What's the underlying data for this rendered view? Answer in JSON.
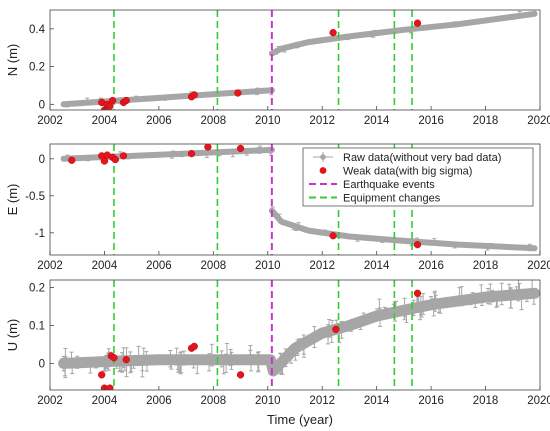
{
  "chart_data": [
    {
      "type": "scatter",
      "ylabel": "N (m)",
      "xlim": [
        2002,
        2020
      ],
      "ylim": [
        -0.03,
        0.5
      ],
      "xticks": [
        2002,
        2004,
        2006,
        2008,
        2010,
        2012,
        2014,
        2016,
        2018,
        2020
      ],
      "yticks": [
        0,
        0.2,
        0.4
      ],
      "raw_trend": [
        [
          2002.5,
          0.0
        ],
        [
          2010.15,
          0.075
        ],
        [
          2010.15,
          0.27
        ],
        [
          2010.5,
          0.295
        ],
        [
          2011.5,
          0.33
        ],
        [
          2013,
          0.36
        ],
        [
          2015,
          0.395
        ],
        [
          2017,
          0.425
        ],
        [
          2019.8,
          0.48
        ]
      ],
      "weak_points": [
        [
          2003.9,
          0.01
        ],
        [
          2004.0,
          -0.03
        ],
        [
          2004.1,
          0.0
        ],
        [
          2004.2,
          -0.01
        ],
        [
          2004.3,
          0.02
        ],
        [
          2004.7,
          0.01
        ],
        [
          2004.8,
          0.02
        ],
        [
          2007.2,
          0.04
        ],
        [
          2007.3,
          0.05
        ],
        [
          2008.9,
          0.06
        ],
        [
          2012.4,
          0.38
        ],
        [
          2015.5,
          0.43
        ]
      ]
    },
    {
      "type": "scatter",
      "ylabel": "E (m)",
      "xlim": [
        2002,
        2020
      ],
      "ylim": [
        -1.3,
        0.2
      ],
      "xticks": [
        2002,
        2004,
        2006,
        2008,
        2010,
        2012,
        2014,
        2016,
        2018,
        2020
      ],
      "yticks": [
        0,
        -0.5,
        -1
      ],
      "raw_trend": [
        [
          2002.5,
          0.0
        ],
        [
          2010.15,
          0.12
        ],
        [
          2010.15,
          -0.7
        ],
        [
          2010.5,
          -0.85
        ],
        [
          2011.5,
          -0.97
        ],
        [
          2013,
          -1.05
        ],
        [
          2015,
          -1.11
        ],
        [
          2017,
          -1.16
        ],
        [
          2019.8,
          -1.21
        ]
      ],
      "weak_points": [
        [
          2002.8,
          -0.02
        ],
        [
          2003.9,
          0.04
        ],
        [
          2004.0,
          -0.03
        ],
        [
          2004.1,
          0.05
        ],
        [
          2004.3,
          0.02
        ],
        [
          2004.4,
          -0.01
        ],
        [
          2004.7,
          0.04
        ],
        [
          2007.2,
          0.07
        ],
        [
          2007.8,
          0.16
        ],
        [
          2009.0,
          0.14
        ],
        [
          2012.4,
          -1.04
        ],
        [
          2015.5,
          -1.16
        ]
      ]
    },
    {
      "type": "scatter",
      "ylabel": "U (m)",
      "xlabel": "Time (year)",
      "xlim": [
        2002,
        2020
      ],
      "ylim": [
        -0.07,
        0.22
      ],
      "xticks": [
        2002,
        2004,
        2006,
        2008,
        2010,
        2012,
        2014,
        2016,
        2018,
        2020
      ],
      "yticks": [
        0,
        0.1,
        0.2
      ],
      "raw_trend": [
        [
          2002.5,
          0.0
        ],
        [
          2004,
          0.005
        ],
        [
          2006,
          0.01
        ],
        [
          2008,
          0.01
        ],
        [
          2010.1,
          0.01
        ],
        [
          2010.2,
          -0.02
        ],
        [
          2011,
          0.04
        ],
        [
          2012,
          0.08
        ],
        [
          2013,
          0.1
        ],
        [
          2014,
          0.125
        ],
        [
          2015,
          0.14
        ],
        [
          2016,
          0.155
        ],
        [
          2017,
          0.165
        ],
        [
          2018,
          0.175
        ],
        [
          2019.8,
          0.185
        ]
      ],
      "weak_points": [
        [
          2003.9,
          -0.03
        ],
        [
          2004.0,
          -0.065
        ],
        [
          2004.2,
          -0.065
        ],
        [
          2004.25,
          0.02
        ],
        [
          2004.35,
          0.015
        ],
        [
          2004.8,
          0.01
        ],
        [
          2007.2,
          0.04
        ],
        [
          2007.3,
          0.045
        ],
        [
          2009.0,
          -0.03
        ],
        [
          2012.5,
          0.09
        ],
        [
          2015.5,
          0.185
        ]
      ]
    }
  ],
  "earthquake_events": [
    2010.15
  ],
  "equipment_changes": [
    2004.35,
    2008.15,
    2012.6,
    2014.65,
    2015.3
  ],
  "legend": {
    "placement": "right of middle panel",
    "entries": [
      {
        "label": "Raw data(without very bad data)",
        "color": "#a6a6a6",
        "kind": "errorbar"
      },
      {
        "label": "Weak data(with big sigma)",
        "color": "#e8141b",
        "kind": "dot"
      },
      {
        "label": "Earthquake events",
        "color": "#cc33cc",
        "kind": "dash"
      },
      {
        "label": "Equipment changes",
        "color": "#33cc33",
        "kind": "dash"
      }
    ]
  },
  "colors": {
    "raw": "#a6a6a6",
    "weak": "#e8141b",
    "earthquake": "#cc33cc",
    "equipment": "#33cc33"
  }
}
